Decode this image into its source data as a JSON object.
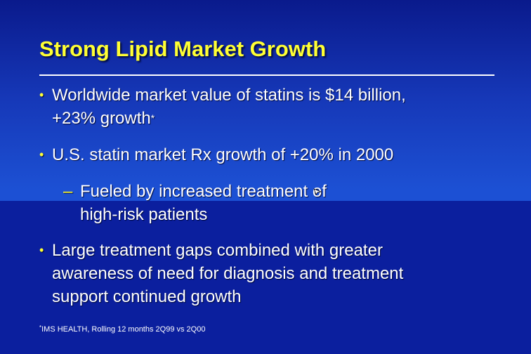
{
  "slide": {
    "title": "Strong Lipid Market Growth",
    "bullets": [
      {
        "marker": "•",
        "lines": [
          "Worldwide market value of statins is $14 billion,",
          "+23% growth"
        ],
        "suffix": "*"
      },
      {
        "marker": "•",
        "lines": [
          "U.S. statin market Rx growth of +20% in 2000"
        ]
      },
      {
        "marker": "–",
        "lines": [
          "Fueled by increased treatment of",
          "high-risk patients"
        ]
      },
      {
        "marker": "•",
        "lines": [
          "Large treatment gaps combined with greater",
          "awareness of need for diagnosis and treatment",
          "support continued growth"
        ]
      }
    ],
    "footnote_marker": "*",
    "footnote": "IMS HEALTH, Rolling 12 months 2Q99 vs 2Q00"
  },
  "colors": {
    "title": "#ffff33",
    "text": "#ffffff",
    "background_top": "#0a1a8c",
    "background_bottom": "#0b1f9e"
  },
  "icons": {
    "cursor": "pointer-cursor-icon"
  }
}
